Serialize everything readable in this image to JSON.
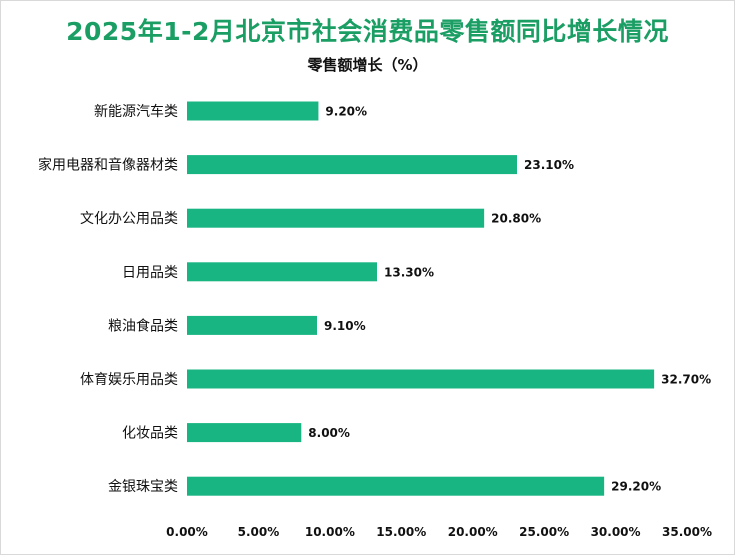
{
  "title": "2025年1-2月北京市社会消费品零售额同比增长情况",
  "subtitle": "零售额增长（%）",
  "chart_data": {
    "type": "bar",
    "orientation": "horizontal",
    "title": "2025年1-2月北京市社会消费品零售额同比增长情况",
    "ylabel": "零售额增长（%）",
    "categories": [
      "新能源汽车类",
      "家用电器和音像器材类",
      "文化办公用品类",
      "日用品类",
      "粮油食品类",
      "体育娱乐用品类",
      "化妆品类",
      "金银珠宝类"
    ],
    "values": [
      9.2,
      23.1,
      20.8,
      13.3,
      9.1,
      32.7,
      8.0,
      29.2
    ],
    "value_labels": [
      "9.20%",
      "23.10%",
      "20.80%",
      "13.30%",
      "9.10%",
      "32.70%",
      "8.00%",
      "29.20%"
    ],
    "xlim": [
      0,
      35
    ],
    "x_ticks": [
      0,
      5,
      10,
      15,
      20,
      25,
      30,
      35
    ],
    "x_tick_labels": [
      "0.00%",
      "5.00%",
      "10.00%",
      "15.00%",
      "20.00%",
      "25.00%",
      "30.00%",
      "35.00%"
    ],
    "grid": false,
    "legend": "none",
    "bar_color": "#18b482"
  }
}
